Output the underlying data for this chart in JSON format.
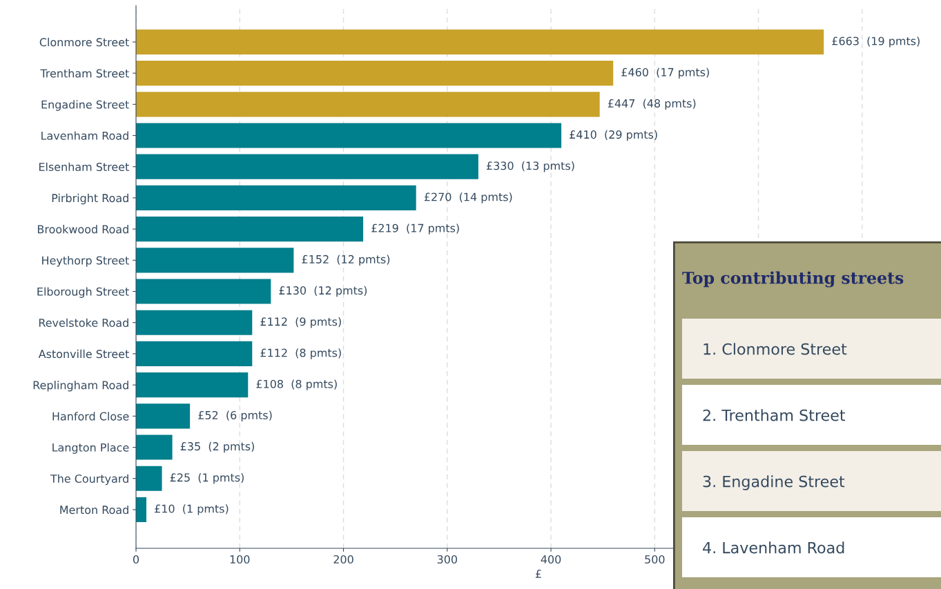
{
  "chart_data": [
    {
      "type": "bar",
      "orientation": "horizontal",
      "xlabel": "£",
      "categories": [
        "Clonmore Street",
        "Trentham Street",
        "Engadine Street",
        "Lavenham Road",
        "Elsenham Street",
        "Pirbright Road",
        "Brookwood Road",
        "Heythorp Street",
        "Elborough Street",
        "Revelstoke Road",
        "Astonville Street",
        "Replingham Road",
        "Hanford Close",
        "Langton Place",
        "The Courtyard",
        "Merton Road"
      ],
      "values": [
        663,
        460,
        447,
        410,
        330,
        270,
        219,
        152,
        130,
        112,
        112,
        108,
        52,
        35,
        25,
        10
      ],
      "colors": [
        "#c9a22a",
        "#c9a22a",
        "#c9a22a",
        "#007f8c",
        "#007f8c",
        "#007f8c",
        "#007f8c",
        "#007f8c",
        "#007f8c",
        "#007f8c",
        "#007f8c",
        "#007f8c",
        "#007f8c",
        "#007f8c",
        "#007f8c",
        "#007f8c"
      ],
      "value_labels": [
        "£663  (19 pmts)",
        "£460  (17 pmts)",
        "£447  (48 pmts)",
        "£410  (29 pmts)",
        "£330  (13 pmts)",
        "£270  (14 pmts)",
        "£219  (17 pmts)",
        "£152  (12 pmts)",
        "£130  (12 pmts)",
        "£112  (9 pmts)",
        "£112  (8 pmts)",
        "£108  (8 pmts)",
        "£52  (6 pmts)",
        "£35  (2 pmts)",
        "£25  (1 pmts)",
        "£10  (1 pmts)"
      ],
      "xlim": [
        0,
        776
      ],
      "xticks": [
        0,
        100,
        200,
        300,
        400,
        500,
        {
          "value": 600,
          "label": null
        },
        {
          "value": 700,
          "label": null
        }
      ],
      "grid": "x"
    },
    {
      "type": "other",
      "title": "Top contributing streets",
      "annotations": [
        "1. Clonmore Street",
        "2. Trentham Street",
        "3. Engadine Street",
        "4. Lavenham Road"
      ]
    }
  ]
}
